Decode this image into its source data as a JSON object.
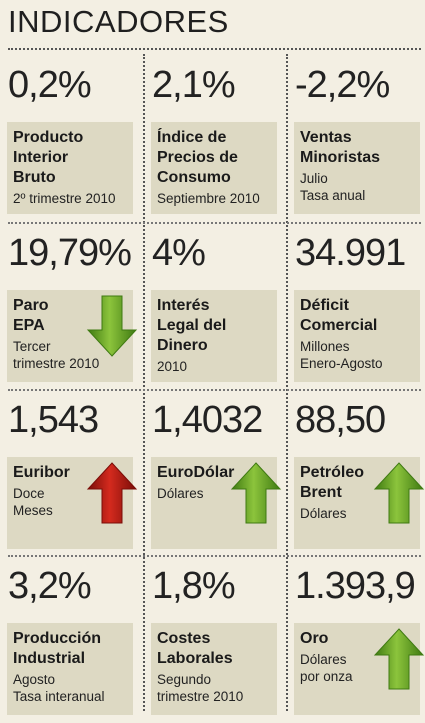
{
  "header": {
    "title": "INDICADORES"
  },
  "indicators": [
    {
      "value": "0,2%",
      "name1": "Producto",
      "name2": "Interior",
      "name3": "Bruto",
      "sub1": "2º trimestre 2010",
      "sub2": "",
      "arrow": ""
    },
    {
      "value": "2,1%",
      "name1": "Índice de",
      "name2": "Precios de",
      "name3": "Consumo",
      "sub1": "Septiembre 2010",
      "sub2": "",
      "arrow": ""
    },
    {
      "value": "-2,2%",
      "name1": "Ventas",
      "name2": "Minoristas",
      "name3": "",
      "sub1": "Julio",
      "sub2": "Tasa anual",
      "arrow": ""
    },
    {
      "value": "19,79%",
      "name1": "Paro",
      "name2": "EPA",
      "name3": "",
      "sub1": "Tercer",
      "sub2": "trimestre 2010",
      "arrow": "down-green"
    },
    {
      "value": "4%",
      "name1": "Interés",
      "name2": "Legal del",
      "name3": "Dinero",
      "sub1": "2010",
      "sub2": "",
      "arrow": ""
    },
    {
      "value": "34.991",
      "name1": "Déficit",
      "name2": "Comercial",
      "name3": "",
      "sub1": "Millones",
      "sub2": "Enero-Agosto",
      "arrow": ""
    },
    {
      "value": "1,543",
      "name1": "Euribor",
      "name2": "",
      "name3": "",
      "sub1": "Doce",
      "sub2": "Meses",
      "arrow": "up-red"
    },
    {
      "value": "1,4032",
      "name1": "EuroDólar",
      "name2": "",
      "name3": "",
      "sub1": "Dólares",
      "sub2": "",
      "arrow": "up-green"
    },
    {
      "value": "88,50",
      "name1": "Petróleo",
      "name2": "Brent",
      "name3": "",
      "sub1": "Dólares",
      "sub2": "",
      "arrow": "up-green"
    },
    {
      "value": "3,2%",
      "name1": "Producción",
      "name2": "Industrial",
      "name3": "",
      "sub1": "Agosto",
      "sub2": "Tasa interanual",
      "arrow": ""
    },
    {
      "value": "1,8%",
      "name1": "Costes",
      "name2": "Laborales",
      "name3": "",
      "sub1": "Segundo",
      "sub2": "trimestre 2010",
      "arrow": ""
    },
    {
      "value": "1.393,9",
      "name1": "Oro",
      "name2": "",
      "name3": "",
      "sub1": "Dólares",
      "sub2": "por onza",
      "arrow": "up-green"
    }
  ],
  "colors": {
    "green": "#8cc43c",
    "green_dark": "#3f7a12",
    "red": "#d42a1e",
    "red_dark": "#7a0d08",
    "box": "#ddd9c3"
  }
}
